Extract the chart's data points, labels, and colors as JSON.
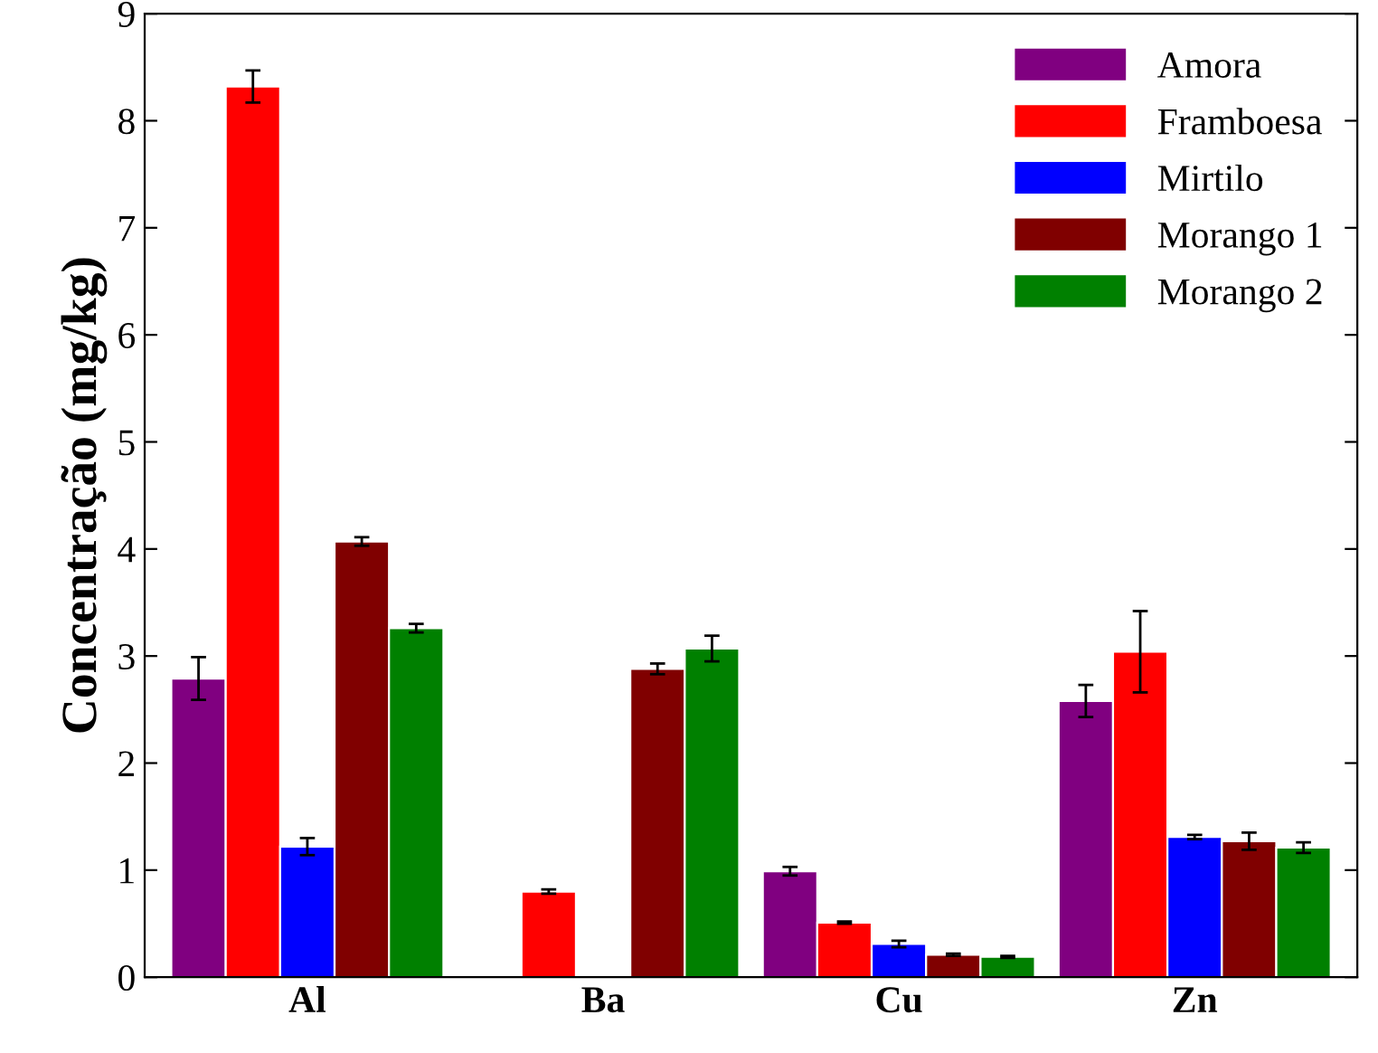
{
  "chart_data": {
    "type": "bar",
    "ylabel": "Concentração (mg/kg)",
    "categories": [
      "Al",
      "Ba",
      "Cu",
      "Zn"
    ],
    "series": [
      {
        "name": "Amora",
        "color": "#800080",
        "values": [
          2.79,
          null,
          0.99,
          2.58
        ],
        "errors": [
          0.2,
          null,
          0.04,
          0.15
        ]
      },
      {
        "name": "Framboesa",
        "color": "#ff0000",
        "values": [
          8.32,
          0.8,
          0.51,
          3.04
        ],
        "errors": [
          0.15,
          0.02,
          0.01,
          0.38
        ]
      },
      {
        "name": "Mirtilo",
        "color": "#0000ff",
        "values": [
          1.22,
          null,
          0.31,
          1.31
        ],
        "errors": [
          0.08,
          null,
          0.03,
          0.02
        ]
      },
      {
        "name": "Morango 1",
        "color": "#800000",
        "values": [
          4.07,
          2.88,
          0.21,
          1.27
        ],
        "errors": [
          0.04,
          0.05,
          0.01,
          0.08
        ]
      },
      {
        "name": "Morango 2",
        "color": "#008000",
        "values": [
          3.26,
          3.07,
          0.19,
          1.21
        ],
        "errors": [
          0.04,
          0.12,
          0.01,
          0.05
        ]
      }
    ],
    "ylim": [
      0,
      9
    ],
    "yticks": [
      0,
      1,
      2,
      3,
      4,
      5,
      6,
      7,
      8,
      9
    ],
    "grid": false,
    "legend": "top right"
  }
}
